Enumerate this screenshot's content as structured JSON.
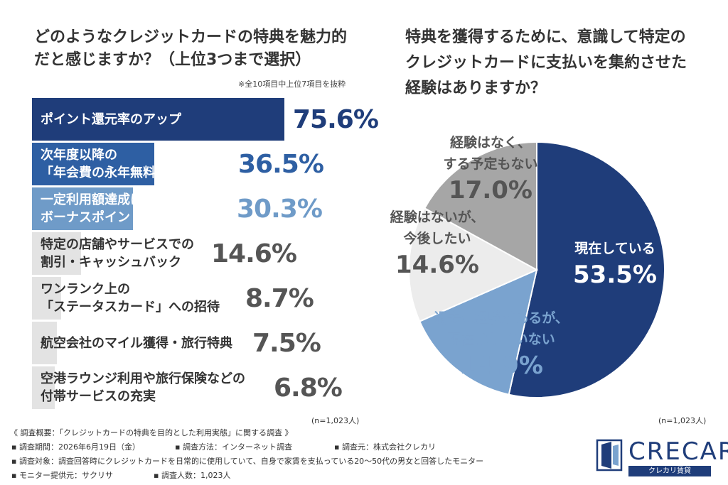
{
  "left_chart": {
    "title_line1": "どのようなクレジットカードの特典を魅力的",
    "title_line2": "だと感じますか？（上位3つまで選択）",
    "note": "※全10項目中上位7項目を抜粋",
    "n_label": "(n=1,023人)"
  },
  "right_chart": {
    "title_line1": "特典を獲得するために、意識して特定の",
    "title_line2": "クレジットカードに支払いを集約させた",
    "title_line3": "経験はありますか？",
    "n_label": "(n=1,023人)"
  },
  "chart_data": [
    {
      "type": "bar",
      "title": "どのようなクレジットカードの特典を魅力的だと感じますか？（上位3つまで選択）",
      "categories": [
        [
          "ポイント還元率のアップ"
        ],
        [
          "次年度以降の",
          "「年会費の永年無料化」"
        ],
        [
          "一定利用額達成による",
          "ボーナスポイント"
        ],
        [
          "特定の店舗やサービスでの",
          "割引・キャッシュバック"
        ],
        [
          "ワンランク上の",
          "「ステータスカード」への招待"
        ],
        [
          "航空会社のマイル獲得・旅行特典"
        ],
        [
          "空港ラウンジ利用や旅行保険などの",
          "付帯サービスの充実"
        ]
      ],
      "values": [
        75.6,
        36.5,
        30.3,
        14.6,
        8.7,
        7.5,
        6.8
      ],
      "value_labels": [
        "75.6%",
        "36.5%",
        "30.3%",
        "14.6%",
        "8.7%",
        "7.5%",
        "6.8%"
      ],
      "colors": [
        "#1f3d7a",
        "#2e5fa3",
        "#6f9bc8",
        "#e3e3e3",
        "#e3e3e3",
        "#e3e3e3",
        "#e3e3e3"
      ],
      "ylim": [
        0,
        100
      ]
    },
    {
      "type": "pie",
      "title": "特典を獲得するために、意識して特定のクレジットカードに支払いを集約させた経験はありますか？",
      "slices": [
        {
          "label": [
            "現在している"
          ],
          "value": 53.5,
          "value_label": "53.5%",
          "color": "#1f3d7a"
        },
        {
          "label": [
            "過去に経験があるが、",
            "現在はしていない"
          ],
          "value": 14.9,
          "value_label": "14.9%",
          "color": "#7aa3cf"
        },
        {
          "label": [
            "経験はないが、",
            "今後したい"
          ],
          "value": 14.6,
          "value_label": "14.6%",
          "color": "#ececec"
        },
        {
          "label": [
            "経験はなく、",
            "する予定もない"
          ],
          "value": 17.0,
          "value_label": "17.0%",
          "color": "#a6a6a6"
        }
      ]
    }
  ],
  "footer": {
    "line1": "《 調査概要：「クレジットカードの特典を目的とした利用実態」に関する調査 》",
    "period": "▪ 調査期間：2026年6月19日（金）",
    "method": "▪ 調査方法：インターネット調査",
    "source": "▪ 調査元：株式会社クレカリ",
    "target": "▪ 調査対象：調査回答時にクレジットカードを日常的に使用していて、自身で家賃を支払っている20〜50代の男女と回答したモニター",
    "provider": "▪ モニター提供元：サクリサ",
    "count": "▪ 調査人数：1,023人"
  },
  "logo": {
    "text": "CRECARI",
    "sub": "クレカリ賃貸",
    "color": "#1f3d7a"
  }
}
